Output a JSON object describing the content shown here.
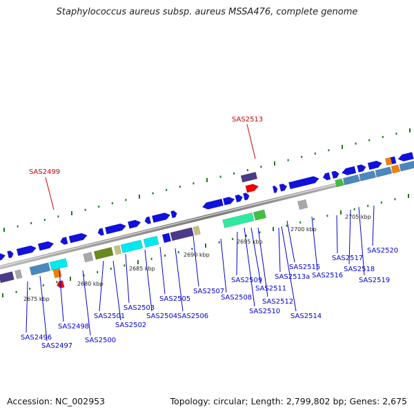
{
  "title": "Staphylococcus aureus subsp. aureus MSSA476, complete genome",
  "footer": {
    "accession": "Accession: NC_002953",
    "stats": "Topology: circular; Length: 2,799,802 bp; Genes: 2,675"
  },
  "colors": {
    "fwd_cds": "#1010e0",
    "rev_cds": "#1010e0",
    "rrna": "#20a0ff",
    "steel": "#4a88c0",
    "cyan": "#00e8f0",
    "olive": "#6a8a20",
    "purple": "#4a3a88",
    "gray": "#a8a8a8",
    "tan": "#c8c080",
    "green": "#40c040",
    "seafoam": "#30e8a0",
    "orange": "#f08000",
    "red": "#f00000",
    "label_blue": "#0000cc",
    "label_red": "#cc0000",
    "backbone": "#888888"
  },
  "kbp_marks": [
    "2675 kbp",
    "2680 kbp",
    "2685 kbp",
    "2690 kbp",
    "2695 kbp",
    "2700 kbp",
    "2705 kbp"
  ],
  "gene_labels": [
    "SAS2496",
    "SAS2497",
    "SAS2498",
    "SAS2500",
    "SAS2501",
    "SAS2502",
    "SAS2503",
    "SAS2504",
    "SAS2505",
    "SAS2506",
    "SAS2507",
    "SAS2508",
    "SAS2509",
    "SAS2510",
    "SAS2511",
    "SAS2512",
    "SAS2513a",
    "SAS2514",
    "SAS2515",
    "SAS2516",
    "SAS2517",
    "SAS2518",
    "SAS2519",
    "SAS2520"
  ],
  "highlight_labels": [
    "SAS2499",
    "SAS2513"
  ]
}
